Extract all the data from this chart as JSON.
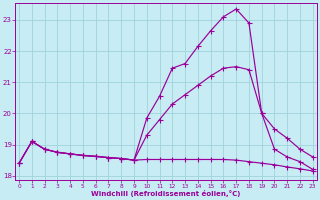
{
  "xlabel": "Windchill (Refroidissement éolien,°C)",
  "background_color": "#c8ecf4",
  "grid_color": "#a0d4de",
  "line_color": "#990099",
  "xlim": [
    -0.3,
    23.3
  ],
  "ylim": [
    17.85,
    23.55
  ],
  "yticks": [
    18,
    19,
    20,
    21,
    22,
    23
  ],
  "xticks": [
    0,
    1,
    2,
    3,
    4,
    5,
    6,
    7,
    8,
    9,
    10,
    11,
    12,
    13,
    14,
    15,
    16,
    17,
    18,
    19,
    20,
    21,
    22,
    23
  ],
  "s1x": [
    0,
    1,
    2,
    3,
    4,
    5,
    6,
    7,
    8,
    9,
    10,
    11,
    12,
    13,
    14,
    15,
    16,
    17,
    18,
    19,
    20,
    21,
    22,
    23
  ],
  "s1y": [
    18.4,
    19.1,
    18.85,
    18.75,
    18.7,
    18.65,
    18.62,
    18.58,
    18.55,
    18.5,
    18.52,
    18.52,
    18.52,
    18.52,
    18.52,
    18.52,
    18.52,
    18.5,
    18.45,
    18.4,
    18.35,
    18.28,
    18.22,
    18.15
  ],
  "s2x": [
    0,
    1,
    2,
    3,
    4,
    5,
    6,
    7,
    8,
    9,
    10,
    11,
    12,
    13,
    14,
    15,
    16,
    17,
    18,
    19,
    20,
    21,
    22,
    23
  ],
  "s2y": [
    18.4,
    19.1,
    18.85,
    18.75,
    18.7,
    18.65,
    18.62,
    18.58,
    18.55,
    18.5,
    19.3,
    19.8,
    20.3,
    20.6,
    20.9,
    21.2,
    21.45,
    21.5,
    21.4,
    20.0,
    19.5,
    19.2,
    18.85,
    18.6
  ],
  "s3x": [
    0,
    1,
    2,
    3,
    4,
    5,
    6,
    7,
    8,
    9,
    10,
    11,
    12,
    13,
    14,
    15,
    16,
    17,
    18,
    19,
    20,
    21,
    22,
    23
  ],
  "s3y": [
    18.4,
    19.1,
    18.85,
    18.75,
    18.7,
    18.65,
    18.62,
    18.58,
    18.55,
    18.5,
    19.85,
    20.55,
    21.45,
    21.6,
    22.15,
    22.65,
    23.1,
    23.35,
    22.9,
    20.0,
    18.85,
    18.6,
    18.45,
    18.2
  ]
}
